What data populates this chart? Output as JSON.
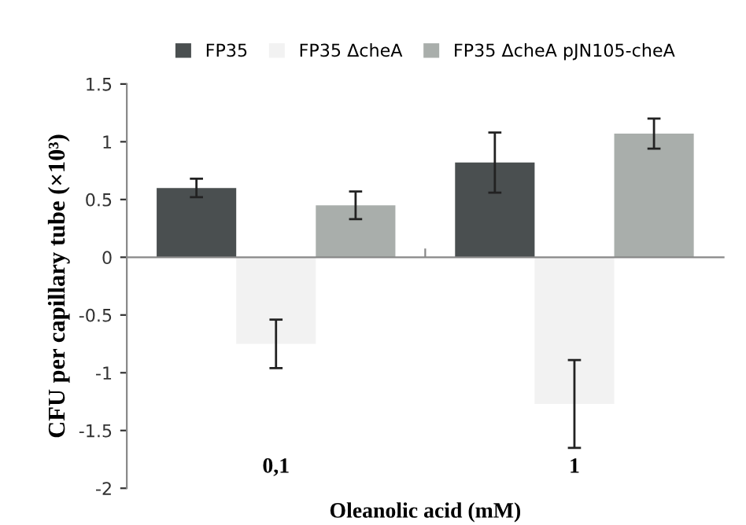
{
  "chart_data": {
    "type": "bar",
    "xlabel": "Oleanolic acid (mM)",
    "ylabel": "CFU per capillary tube (×10³)",
    "categories": [
      "0,1",
      "1"
    ],
    "series": [
      {
        "name": "FP35",
        "color": "#4a4f50",
        "values": [
          0.6,
          0.82
        ],
        "errors": [
          0.08,
          0.26
        ]
      },
      {
        "name": "FP35 ΔcheA",
        "color": "#f2f2f2",
        "values": [
          -0.75,
          -1.27
        ],
        "errors": [
          0.21,
          0.38
        ]
      },
      {
        "name": "FP35 ΔcheA pJN105-cheA",
        "color": "#a9aeab",
        "values": [
          0.45,
          1.07
        ],
        "errors": [
          0.12,
          0.13
        ]
      }
    ],
    "ylim": [
      -2,
      1.5
    ],
    "yticks": [
      -2,
      -1.5,
      -1,
      -0.5,
      0,
      0.5,
      1,
      1.5
    ],
    "legend": "top"
  }
}
